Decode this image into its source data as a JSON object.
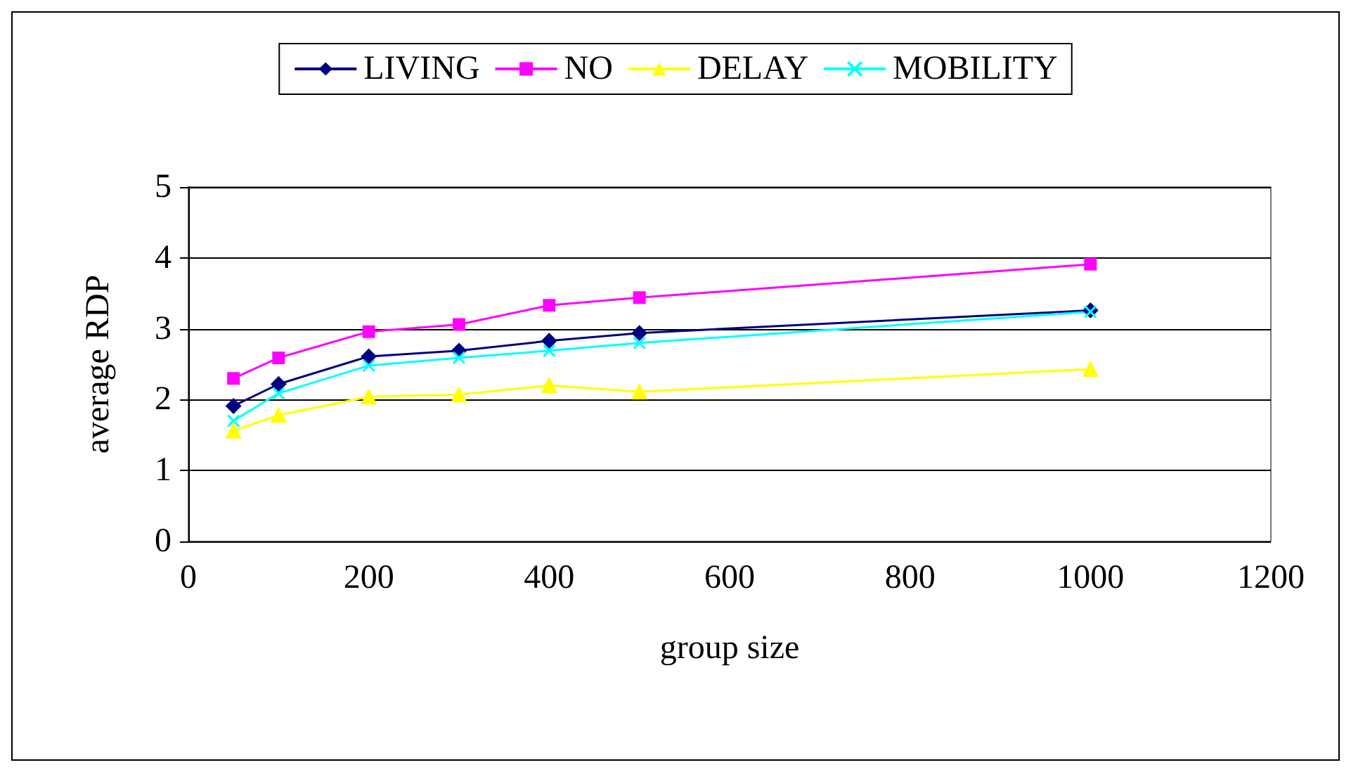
{
  "chart_data": {
    "type": "line",
    "xlabel": "group size",
    "ylabel": "average RDP",
    "xlim": [
      0,
      1200
    ],
    "xticks": [
      0,
      200,
      400,
      600,
      800,
      1000,
      1200
    ],
    "ylim": [
      0,
      5
    ],
    "yticks": [
      0,
      1,
      2,
      3,
      4,
      5
    ],
    "grid": "y",
    "legend": "top",
    "line_style": "solid",
    "x": [
      50,
      100,
      200,
      300,
      400,
      500,
      1000
    ],
    "series": [
      {
        "name": "LIVING",
        "color": "#000080",
        "marker": "diamond",
        "values": [
          1.91,
          2.22,
          2.61,
          2.69,
          2.83,
          2.94,
          3.26
        ]
      },
      {
        "name": "NO",
        "color": "#ff00ff",
        "marker": "square",
        "values": [
          2.3,
          2.59,
          2.96,
          3.06,
          3.33,
          3.44,
          3.91
        ]
      },
      {
        "name": "DELAY",
        "color": "#ffff00",
        "marker": "triangle",
        "values": [
          1.56,
          1.78,
          2.04,
          2.07,
          2.2,
          2.11,
          2.43
        ]
      },
      {
        "name": "MOBILITY",
        "color": "#00ffff",
        "marker": "cross",
        "values": [
          1.7,
          2.09,
          2.48,
          2.59,
          2.69,
          2.8,
          3.24
        ]
      }
    ]
  }
}
